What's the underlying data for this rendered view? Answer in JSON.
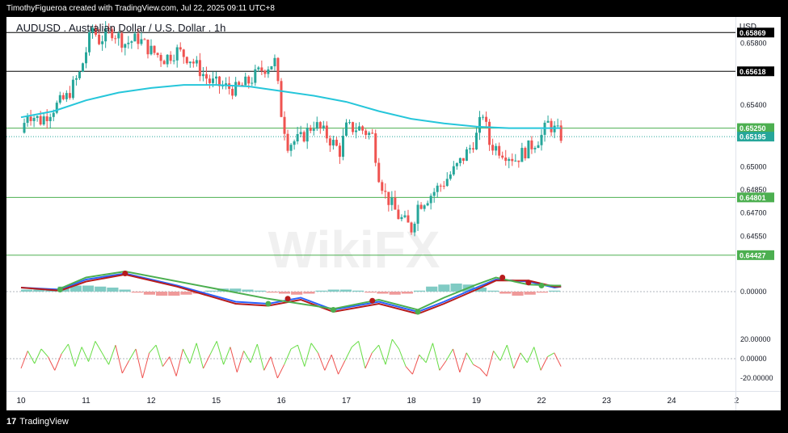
{
  "header": {
    "credit": "TimothyFigueroa created with TradingView.com, Jul 22, 2025 09:11 UTC+8"
  },
  "chart_title": "AUDUSD . Australian Dollar / U.S. Dollar . 1h",
  "currency": "USD",
  "watermark": "WikiFX",
  "footer": {
    "brand_mark": "17",
    "brand": "TradingView"
  },
  "colors": {
    "up": "#26a69a",
    "down": "#ef5350",
    "ma": "#26c6da",
    "hline_black": "#000000",
    "hline_green": "#4caf50",
    "macd_fast": "#2962ff",
    "macd_slow": "#b71c1c",
    "signal_green": "#4caf50",
    "osc_up": "#66dd44",
    "osc_down": "#ef5350"
  },
  "chart_data": [
    {
      "type": "candlestick",
      "symbol": "AUDUSD",
      "timeframe": "1h",
      "x_axis_labels": [
        "10",
        "11",
        "12",
        "15",
        "16",
        "17",
        "18",
        "19",
        "22",
        "23",
        "24",
        "2"
      ],
      "ylim": [
        0.644,
        0.6597
      ],
      "y_ticks": [
        "0.65800",
        "0.65400",
        "0.65000",
        "0.64850",
        "0.64700",
        "0.64550"
      ],
      "horizontal_levels": [
        {
          "value": 0.65869,
          "label": "0.65869",
          "style": "black"
        },
        {
          "value": 0.65618,
          "label": "0.65618",
          "style": "black"
        },
        {
          "value": 0.6525,
          "label": "0.65250",
          "style": "green"
        },
        {
          "value": 0.64801,
          "label": "0.64801",
          "style": "green"
        },
        {
          "value": 0.64427,
          "label": "0.64427",
          "style": "green"
        }
      ],
      "last_price": {
        "value": 0.65195,
        "label": "0.65195"
      },
      "moving_average_path": [
        [
          0,
          0.6532
        ],
        [
          0.5,
          0.6536
        ],
        [
          1.0,
          0.6543
        ],
        [
          1.5,
          0.6548
        ],
        [
          2.0,
          0.6551
        ],
        [
          2.5,
          0.6553
        ],
        [
          3.0,
          0.6553
        ],
        [
          3.5,
          0.6552
        ],
        [
          4.0,
          0.6549
        ],
        [
          4.5,
          0.6546
        ],
        [
          5.0,
          0.6542
        ],
        [
          5.5,
          0.6536
        ],
        [
          6.0,
          0.6531
        ],
        [
          6.5,
          0.6528
        ],
        [
          7.0,
          0.6526
        ],
        [
          7.5,
          0.6525
        ],
        [
          8.0,
          0.6525
        ],
        [
          8.3,
          0.6525
        ]
      ],
      "price_path": [
        [
          0,
          0.6522
        ],
        [
          0.1,
          0.6535
        ],
        [
          0.3,
          0.653
        ],
        [
          0.5,
          0.6538
        ],
        [
          0.7,
          0.6545
        ],
        [
          0.9,
          0.656
        ],
        [
          1.0,
          0.6575
        ],
        [
          1.1,
          0.659
        ],
        [
          1.2,
          0.6582
        ],
        [
          1.4,
          0.6588
        ],
        [
          1.6,
          0.658
        ],
        [
          1.8,
          0.6583
        ],
        [
          2.0,
          0.6575
        ],
        [
          2.2,
          0.657
        ],
        [
          2.4,
          0.6575
        ],
        [
          2.6,
          0.657
        ],
        [
          2.9,
          0.6555
        ],
        [
          3.1,
          0.6552
        ],
        [
          3.3,
          0.655
        ],
        [
          3.5,
          0.6555
        ],
        [
          3.7,
          0.6563
        ],
        [
          3.9,
          0.6568
        ],
        [
          4.0,
          0.6535
        ],
        [
          4.1,
          0.6515
        ],
        [
          4.3,
          0.6518
        ],
        [
          4.5,
          0.6528
        ],
        [
          4.7,
          0.652
        ],
        [
          4.9,
          0.651
        ],
        [
          5.0,
          0.6525
        ],
        [
          5.2,
          0.6525
        ],
        [
          5.4,
          0.652
        ],
        [
          5.5,
          0.6495
        ],
        [
          5.6,
          0.6482
        ],
        [
          5.8,
          0.6468
        ],
        [
          6.0,
          0.646
        ],
        [
          6.1,
          0.6475
        ],
        [
          6.3,
          0.6482
        ],
        [
          6.5,
          0.649
        ],
        [
          6.7,
          0.65
        ],
        [
          6.9,
          0.6512
        ],
        [
          7.0,
          0.652
        ],
        [
          7.1,
          0.6535
        ],
        [
          7.2,
          0.6515
        ],
        [
          7.4,
          0.651
        ],
        [
          7.6,
          0.6505
        ],
        [
          7.8,
          0.6512
        ],
        [
          8.0,
          0.652
        ],
        [
          8.1,
          0.6528
        ],
        [
          8.2,
          0.6524
        ],
        [
          8.3,
          0.652
        ]
      ]
    },
    {
      "type": "line",
      "name": "macd_panel",
      "zero_label": "0.00000",
      "series": [
        {
          "name": "fast",
          "color": "#2962ff",
          "values": [
            [
              0,
              0.2
            ],
            [
              0.6,
              0.1
            ],
            [
              1.0,
              0.6
            ],
            [
              1.6,
              0.9
            ],
            [
              2.4,
              0.3
            ],
            [
              3.3,
              -0.5
            ],
            [
              3.8,
              -0.6
            ],
            [
              4.3,
              -0.3
            ],
            [
              4.8,
              -0.9
            ],
            [
              5.5,
              -0.5
            ],
            [
              6.1,
              -1.0
            ],
            [
              6.5,
              -0.5
            ],
            [
              7.0,
              0.2
            ],
            [
              7.3,
              0.6
            ],
            [
              7.8,
              0.5
            ],
            [
              8.2,
              0.2
            ],
            [
              8.3,
              0.25
            ]
          ]
        },
        {
          "name": "slow",
          "color": "#b71c1c",
          "values": [
            [
              0,
              0.2
            ],
            [
              0.6,
              0.05
            ],
            [
              1.0,
              0.5
            ],
            [
              1.6,
              0.85
            ],
            [
              2.4,
              0.25
            ],
            [
              3.3,
              -0.6
            ],
            [
              3.8,
              -0.7
            ],
            [
              4.3,
              -0.4
            ],
            [
              4.8,
              -1.0
            ],
            [
              5.5,
              -0.6
            ],
            [
              6.1,
              -1.1
            ],
            [
              6.5,
              -0.6
            ],
            [
              7.0,
              0.1
            ],
            [
              7.3,
              0.55
            ],
            [
              7.8,
              0.55
            ],
            [
              8.2,
              0.25
            ],
            [
              8.3,
              0.25
            ]
          ]
        },
        {
          "name": "signal",
          "color": "#4caf50",
          "values": [
            [
              0.6,
              0.15
            ],
            [
              1.0,
              0.7
            ],
            [
              1.6,
              1.0
            ],
            [
              3.8,
              -0.35
            ],
            [
              4.8,
              -0.85
            ],
            [
              5.5,
              -0.4
            ],
            [
              6.1,
              -0.9
            ],
            [
              6.5,
              -0.3
            ],
            [
              7.0,
              0.35
            ],
            [
              7.3,
              0.7
            ],
            [
              7.8,
              0.35
            ],
            [
              8.2,
              0.3
            ],
            [
              8.3,
              0.3
            ]
          ]
        }
      ],
      "markers": [
        {
          "x": 0.6,
          "y": 0.1,
          "color": "green"
        },
        {
          "x": 1.6,
          "y": 0.9,
          "color": "red"
        },
        {
          "x": 3.8,
          "y": -0.6,
          "color": "green"
        },
        {
          "x": 4.1,
          "y": -0.35,
          "color": "red"
        },
        {
          "x": 4.8,
          "y": -0.9,
          "color": "green"
        },
        {
          "x": 5.4,
          "y": -0.45,
          "color": "red"
        },
        {
          "x": 6.1,
          "y": -1.0,
          "color": "green"
        },
        {
          "x": 7.4,
          "y": 0.7,
          "color": "red"
        },
        {
          "x": 7.8,
          "y": 0.45,
          "color": "red"
        },
        {
          "x": 8.0,
          "y": 0.3,
          "color": "green"
        }
      ],
      "histogram": [
        0.1,
        0.1,
        0.15,
        0.25,
        0.3,
        0.3,
        0.25,
        0.2,
        0.1,
        -0.05,
        -0.15,
        -0.2,
        -0.2,
        -0.15,
        -0.1,
        0.05,
        0.15,
        0.15,
        0.1,
        0.05,
        -0.05,
        -0.1,
        -0.15,
        -0.1,
        0.05,
        0.1,
        0.1,
        0.05,
        -0.05,
        -0.1,
        -0.15,
        -0.1,
        0.05,
        0.25,
        0.35,
        0.4,
        0.35,
        0.2,
        0.05,
        -0.1,
        -0.2,
        -0.15,
        -0.05,
        0.05
      ]
    },
    {
      "type": "line",
      "name": "oscillator",
      "y_ticks": [
        "20.00000",
        "0.00000",
        "-20.00000"
      ],
      "ylim": [
        -25,
        25
      ],
      "values": [
        -10,
        8,
        -5,
        10,
        2,
        -12,
        5,
        15,
        -8,
        12,
        -3,
        18,
        6,
        -6,
        14,
        -15,
        -2,
        10,
        -20,
        6,
        14,
        -8,
        2,
        -18,
        10,
        -5,
        16,
        -10,
        4,
        18,
        -6,
        12,
        -14,
        8,
        -4,
        15,
        -12,
        2,
        -20,
        -6,
        10,
        14,
        -8,
        16,
        6,
        -12,
        4,
        -16,
        -2,
        12,
        18,
        -10,
        6,
        14,
        -6,
        20,
        10,
        -8,
        -16,
        4,
        -4,
        16,
        -12,
        -2,
        10,
        -14,
        6,
        -6,
        -10,
        -18,
        8,
        -2,
        14,
        -10,
        6,
        -4,
        12,
        -12,
        2,
        6,
        -8
      ]
    }
  ]
}
